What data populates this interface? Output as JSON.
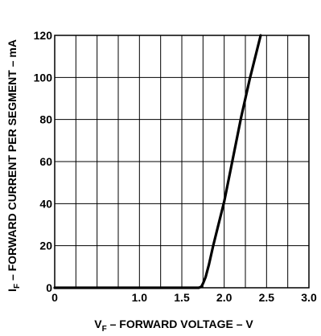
{
  "chart_data": {
    "type": "line",
    "xlabel": "V F – FORWARD VOLTAGE – V",
    "xlabel_main": "V",
    "xlabel_sub": "F",
    "xlabel_rest": " – FORWARD VOLTAGE – V",
    "ylabel": "IF – FORWARD CURRENT PER SEGMENT – mA",
    "ylabel_main": "I",
    "ylabel_sub": "F",
    "ylabel_rest": " – FORWARD CURRENT PER SEGMENT – mA",
    "xlim": [
      0,
      3.0
    ],
    "ylim": [
      0,
      120
    ],
    "xticks": [
      0,
      1.0,
      1.5,
      2.0,
      2.5,
      3.0
    ],
    "xtick_labels": [
      "0",
      "1.0",
      "1.5",
      "2.0",
      "2.5",
      "3.0"
    ],
    "yticks": [
      0,
      20,
      40,
      60,
      80,
      100,
      120
    ],
    "ytick_labels": [
      "0",
      "20",
      "40",
      "60",
      "80",
      "100",
      "120"
    ],
    "x_gridlines": [
      0.25,
      0.5,
      0.75,
      1.0,
      1.25,
      1.5,
      1.75,
      2.0,
      2.25,
      2.5,
      2.75
    ],
    "y_gridlines": [
      20,
      40,
      60,
      80,
      100
    ],
    "grid": true,
    "series": [
      {
        "x": [
          0,
          1.7,
          1.73,
          1.75,
          1.78,
          1.82,
          1.87,
          1.92,
          2.0,
          2.1,
          2.2,
          2.3,
          2.43
        ],
        "y": [
          0,
          0,
          0.5,
          2,
          5,
          11,
          20,
          28,
          41,
          61,
          81,
          99,
          120
        ]
      }
    ],
    "colors": {
      "line": "#000000",
      "grid": "#000000"
    }
  }
}
